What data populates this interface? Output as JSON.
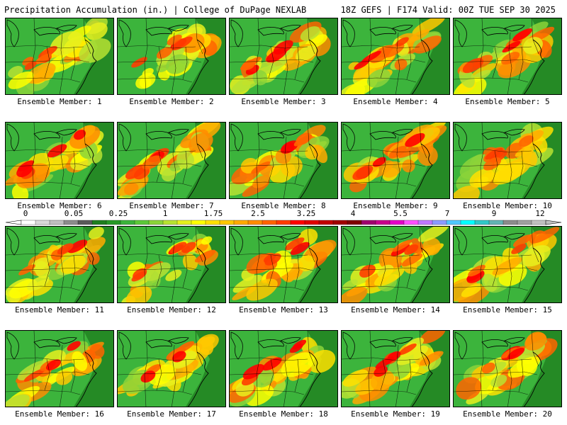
{
  "header": {
    "title": "Precipitation Accumulation (in.) | College of DuPage NEXLAB",
    "run_info": "18Z GEFS | F174 Valid: 00Z TUE SEP 30 2025"
  },
  "legend": {
    "tick_labels": [
      "0",
      "0.05",
      "0.25",
      "1",
      "1.75",
      "2.5",
      "3.25",
      "4",
      "5.5",
      "7",
      "9",
      "12"
    ],
    "colors": [
      "#ffffff",
      "#d9d9d9",
      "#bfbfbf",
      "#8c8c8c",
      "#5a5a5a",
      "#1f7f1f",
      "#289928",
      "#3cb43c",
      "#5cc83a",
      "#8bd43a",
      "#b7e232",
      "#e6f01e",
      "#ffff00",
      "#ffe100",
      "#ffc800",
      "#ffaa00",
      "#ff8c00",
      "#ff6400",
      "#ff3c00",
      "#ff0000",
      "#e00000",
      "#c00000",
      "#a00000",
      "#800000",
      "#a0006e",
      "#c8008c",
      "#e600c8",
      "#ff50ff",
      "#be78ff",
      "#8c9bff",
      "#50c8ff",
      "#00ffff",
      "#32c8c8",
      "#64b4b4",
      "#8c8c8c",
      "#a0a0a0",
      "#c0c0c0"
    ]
  },
  "panels": [
    {
      "member": 1,
      "label": "Ensemble Member: 1"
    },
    {
      "member": 2,
      "label": "Ensemble Member: 2"
    },
    {
      "member": 3,
      "label": "Ensemble Member: 3"
    },
    {
      "member": 4,
      "label": "Ensemble Member: 4"
    },
    {
      "member": 5,
      "label": "Ensemble Member: 5"
    },
    {
      "member": 6,
      "label": "Ensemble Member: 6"
    },
    {
      "member": 7,
      "label": "Ensemble Member: 7"
    },
    {
      "member": 8,
      "label": "Ensemble Member: 8"
    },
    {
      "member": 9,
      "label": "Ensemble Member: 9"
    },
    {
      "member": 10,
      "label": "Ensemble Member: 10"
    },
    {
      "member": 11,
      "label": "Ensemble Member: 11"
    },
    {
      "member": 12,
      "label": "Ensemble Member: 12"
    },
    {
      "member": 13,
      "label": "Ensemble Member: 13"
    },
    {
      "member": 14,
      "label": "Ensemble Member: 14"
    },
    {
      "member": 15,
      "label": "Ensemble Member: 15"
    },
    {
      "member": 16,
      "label": "Ensemble Member: 16"
    },
    {
      "member": 17,
      "label": "Ensemble Member: 17"
    },
    {
      "member": 18,
      "label": "Ensemble Member: 18"
    },
    {
      "member": 19,
      "label": "Ensemble Member: 19"
    },
    {
      "member": 20,
      "label": "Ensemble Member: 20"
    }
  ]
}
